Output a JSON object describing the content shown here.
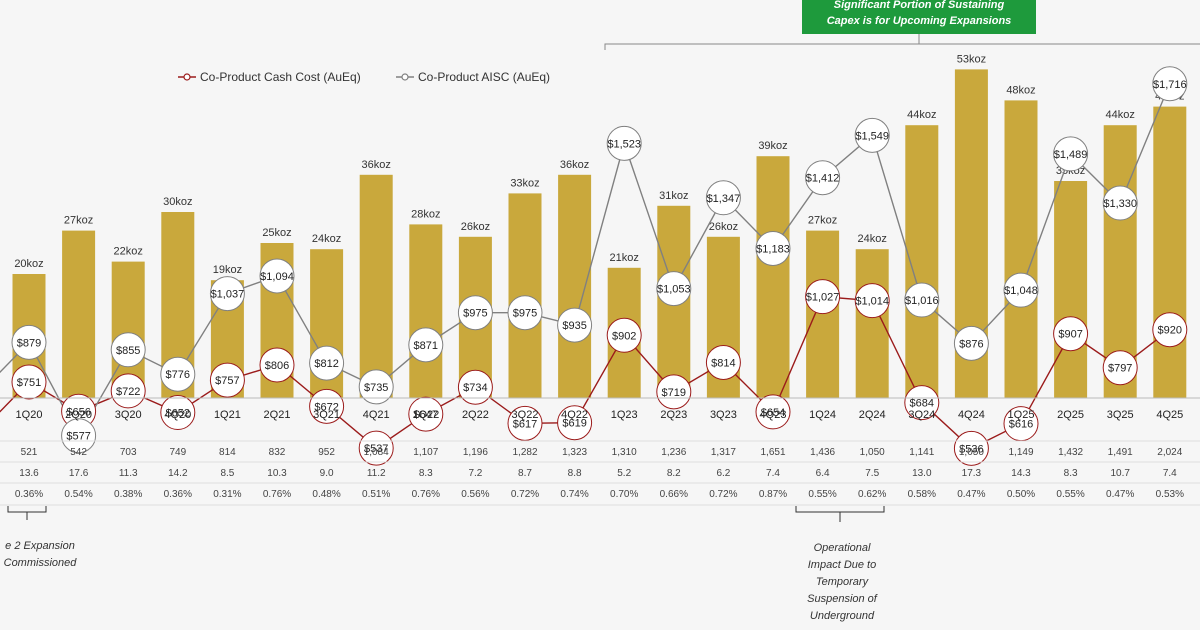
{
  "chart_data": {
    "type": "bar",
    "categories": [
      "1Q20",
      "2Q20",
      "3Q20",
      "4Q20",
      "1Q21",
      "2Q21",
      "3Q21",
      "4Q21",
      "1Q22",
      "2Q22",
      "3Q22",
      "4Q22",
      "1Q23",
      "2Q23",
      "3Q23",
      "4Q23",
      "1Q24",
      "2Q24",
      "3Q24",
      "4Q24",
      "1Q25",
      "2Q25",
      "3Q25",
      "4Q25"
    ],
    "series": [
      {
        "kind": "bar",
        "values": [
          20,
          27,
          22,
          30,
          19,
          25,
          24,
          36,
          28,
          26,
          33,
          36,
          21,
          31,
          26,
          39,
          27,
          24,
          44,
          53,
          48,
          35,
          44,
          47
        ],
        "labels": [
          "20koz",
          "27koz",
          "22koz",
          "30koz",
          "19koz",
          "25koz",
          "24koz",
          "36koz",
          "28koz",
          "26koz",
          "33koz",
          "36koz",
          "21koz",
          "31koz",
          "26koz",
          "39koz",
          "27koz",
          "24koz",
          "44koz",
          "53koz",
          "48koz",
          "35koz",
          "44koz",
          "47koz"
        ],
        "color": "#c9a83c"
      },
      {
        "name": "Co-Product Cash Cost (AuEq)",
        "kind": "line",
        "values": [
          751,
          656,
          722,
          652,
          757,
          806,
          672,
          537,
          647,
          734,
          617,
          619,
          902,
          719,
          814,
          654,
          1027,
          1014,
          684,
          536,
          616,
          907,
          797,
          920
        ],
        "labels": [
          "$751",
          "$656",
          "$722",
          "$652",
          "$757",
          "$806",
          "$672",
          "$537",
          "$647",
          "$734",
          "$617",
          "$619",
          "$902",
          "$719",
          "$814",
          "$654",
          "$1,027",
          "$1,014",
          "$684",
          "$536",
          "$616",
          "$907",
          "$797",
          "$920"
        ],
        "color": "#9b1b1b"
      },
      {
        "name": "Co-Product AISC (AuEq)",
        "kind": "line",
        "values": [
          879,
          577,
          855,
          776,
          1037,
          1094,
          812,
          735,
          871,
          975,
          975,
          935,
          1523,
          1053,
          1347,
          1183,
          1412,
          1549,
          1016,
          876,
          1048,
          1489,
          1330,
          1716
        ],
        "labels": [
          "$879",
          "$577",
          "$855",
          "$776",
          "$1,037",
          "$1,094",
          "$812",
          "$735",
          "$871",
          "$975",
          "$975",
          "$935",
          "$1,523",
          "$1,053",
          "$1,347",
          "$1,183",
          "$1,412",
          "$1,549",
          "$1,016",
          "$876",
          "$1,048",
          "$1,489",
          "$1,330",
          "$1,716"
        ],
        "color": "#808080"
      }
    ],
    "table_rows": [
      [
        "521",
        "542",
        "703",
        "749",
        "814",
        "832",
        "952",
        "1,084",
        "1,107",
        "1,196",
        "1,282",
        "1,323",
        "1,310",
        "1,236",
        "1,317",
        "1,651",
        "1,436",
        "1,050",
        "1,141",
        "1,050",
        "1,149",
        "1,432",
        "1,491",
        "2,024"
      ],
      [
        "13.6",
        "17.6",
        "11.3",
        "14.2",
        "8.5",
        "10.3",
        "9.0",
        "11.2",
        "8.3",
        "7.2",
        "8.7",
        "8.8",
        "5.2",
        "8.2",
        "6.2",
        "7.4",
        "6.4",
        "7.5",
        "13.0",
        "17.3",
        "14.3",
        "8.3",
        "10.7",
        "7.4"
      ],
      [
        "0.36%",
        "0.54%",
        "0.38%",
        "0.36%",
        "0.31%",
        "0.76%",
        "0.48%",
        "0.51%",
        "0.76%",
        "0.56%",
        "0.72%",
        "0.74%",
        "0.70%",
        "0.66%",
        "0.72%",
        "0.87%",
        "0.55%",
        "0.62%",
        "0.58%",
        "0.47%",
        "0.50%",
        "0.55%",
        "0.47%",
        "0.53%"
      ]
    ],
    "annotations": {
      "callout_line1": "Significant Portion of Sustaining",
      "callout_line2": "Capex is for Upcoming Expansions",
      "callout_color": "#1e9a3c",
      "left_note_line1": "e 2 Expansion",
      "left_note_line2": "Commissioned",
      "mid_note_lines": [
        "Operational",
        "Impact Due to",
        "Temporary",
        "Suspension of",
        "Underground"
      ]
    }
  }
}
